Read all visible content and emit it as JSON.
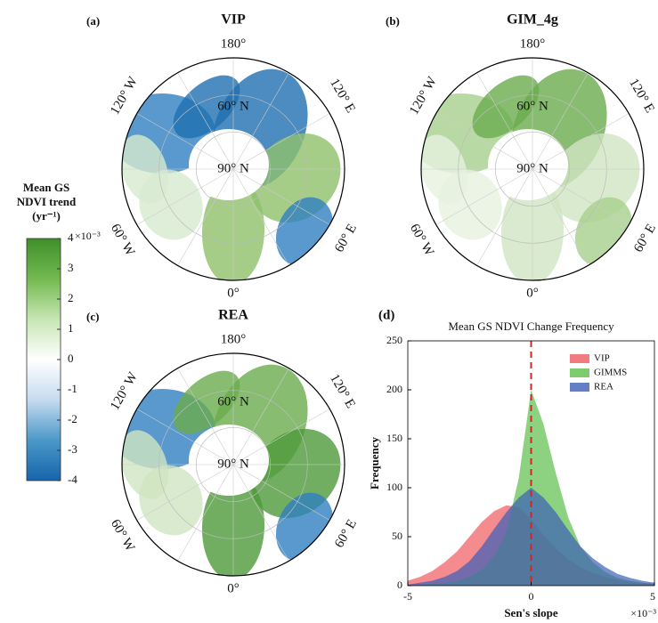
{
  "panels": [
    {
      "label": "(a)",
      "title": "VIP",
      "palette": [
        "#2f7fc0",
        "#1f6fb2",
        "#8fc06a",
        "#d7ead0"
      ],
      "graticule": [
        "180°",
        "120° W",
        "120° E",
        "60° N",
        "90° N",
        "60° W",
        "60° E",
        "0°"
      ]
    },
    {
      "label": "(b)",
      "title": "GIM_4g",
      "palette": [
        "#a8d08d",
        "#6aab4e",
        "#cfe5c2",
        "#e6f1df"
      ],
      "graticule": [
        "180°",
        "120° W",
        "120° E",
        "60° N",
        "90° N",
        "60° W",
        "60° E",
        "0°"
      ]
    },
    {
      "label": "(c)",
      "title": "REA",
      "palette": [
        "#2f7fc0",
        "#6aab4e",
        "#4d9a3a",
        "#cfe5c2"
      ],
      "graticule": [
        "180°",
        "120° W",
        "120° E",
        "60° N",
        "90° N",
        "60° W",
        "60° E",
        "0°"
      ]
    }
  ],
  "colorbar": {
    "title_lines": [
      "Mean GS",
      "NDVI trend",
      "(yr⁻¹)"
    ],
    "lim": [
      -4,
      4
    ],
    "ticks": [
      4,
      3,
      2,
      1,
      0,
      -1,
      -2,
      -3,
      -4
    ],
    "exponent": "×10⁻³",
    "colors": [
      "#1764ab",
      "#4a98c9",
      "#c6dbef",
      "#ffffff",
      "#c7e6b4",
      "#74b950",
      "#3f8f2a"
    ]
  },
  "chart_data": {
    "type": "area",
    "label": "(d)",
    "title": "Mean GS NDVI Change Frequency",
    "x_label": "Sen's slope",
    "y_label": "Frequency",
    "x_exponent": "×10⁻³",
    "x": [
      -5,
      -4.5,
      -4,
      -3.5,
      -3,
      -2.5,
      -2,
      -1.5,
      -1,
      -0.5,
      0,
      0.5,
      1,
      1.5,
      2,
      2.5,
      3,
      3.5,
      4,
      4.5,
      5
    ],
    "series": [
      {
        "name": "VIP",
        "color": "#ee5a5f",
        "values": [
          5,
          9,
          15,
          24,
          35,
          50,
          65,
          76,
          82,
          80,
          68,
          52,
          38,
          27,
          19,
          13,
          9,
          6,
          4,
          3,
          2
        ]
      },
      {
        "name": "GIMMS",
        "color": "#5cbf4a",
        "values": [
          0,
          1,
          2,
          3,
          5,
          9,
          16,
          30,
          55,
          110,
          200,
          165,
          115,
          70,
          40,
          24,
          14,
          8,
          5,
          3,
          2
        ]
      },
      {
        "name": "REA",
        "color": "#3c5fb8",
        "values": [
          1,
          3,
          5,
          9,
          15,
          25,
          40,
          58,
          75,
          90,
          100,
          90,
          75,
          57,
          40,
          28,
          19,
          12,
          8,
          5,
          3
        ]
      }
    ],
    "vline": 0,
    "vline_color": "#e02020",
    "xlim": [
      -5,
      5
    ],
    "xticks": [
      -5,
      0,
      5
    ],
    "ylim": [
      0,
      250
    ],
    "yticks": [
      0,
      50,
      100,
      150,
      200,
      250
    ],
    "legend": "upper right"
  }
}
